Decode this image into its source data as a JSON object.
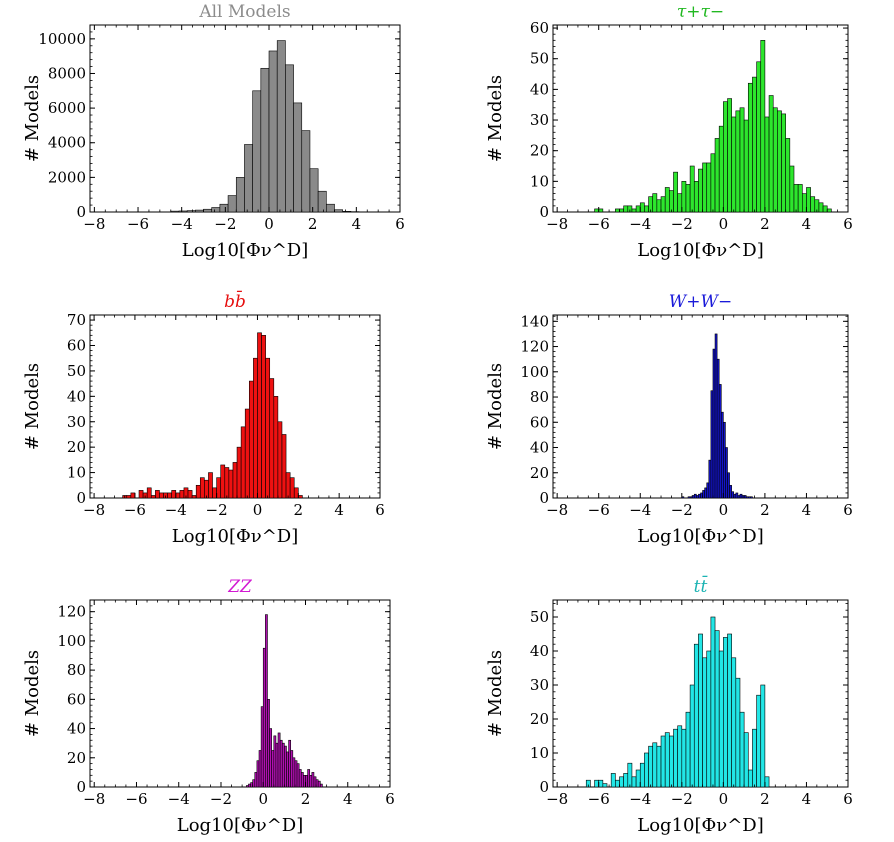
{
  "chart_data": [
    {
      "type": "bar",
      "title": "All Models",
      "title_color": "#8c8c8c",
      "bar_color": "#8a8a8a",
      "xlabel": "Log10[Φν^D]",
      "ylabel": "# Models",
      "xlim": [
        -8.2,
        6
      ],
      "ylim": [
        0,
        10800
      ],
      "xticks": [
        -8,
        -6,
        -4,
        -2,
        0,
        2,
        4,
        6
      ],
      "yticks": [
        0,
        2000,
        4000,
        6000,
        8000,
        10000
      ],
      "bin_width": 0.375,
      "bin_start": -4.5,
      "values": [
        50,
        60,
        80,
        110,
        160,
        260,
        450,
        950,
        2000,
        3900,
        7000,
        8300,
        9300,
        9900,
        8500,
        6300,
        4700,
        2500,
        1200,
        450,
        130,
        40,
        20,
        10
      ]
    },
    {
      "type": "bar",
      "title": "τ+τ−",
      "title_color": "#21b821",
      "bar_color": "#2de62d",
      "xlabel": "Log10[Φν^D]",
      "ylabel": "# Models",
      "xlim": [
        -8.2,
        6
      ],
      "ylim": [
        0,
        61
      ],
      "xticks": [
        -8,
        -6,
        -4,
        -2,
        0,
        2,
        4,
        6
      ],
      "yticks": [
        0,
        10,
        20,
        30,
        40,
        50,
        60
      ],
      "bin_width": 0.2,
      "bin_start": -6.2,
      "values": [
        1,
        1,
        0,
        0,
        0,
        1,
        1,
        2,
        2,
        1,
        2,
        3,
        2,
        5,
        6,
        4,
        5,
        8,
        7,
        13,
        6,
        10,
        9,
        15,
        10,
        14,
        16,
        16,
        19,
        24,
        28,
        36,
        37,
        31,
        33,
        34,
        30,
        42,
        44,
        49,
        56,
        31,
        38,
        34,
        33,
        32,
        24,
        15,
        9,
        9,
        6,
        8,
        5,
        4,
        3,
        2,
        1
      ]
    },
    {
      "type": "bar",
      "title": "bb̄",
      "title_color": "#e61010",
      "bar_color": "#ee1111",
      "xlabel": "Log10[Φν^D]",
      "ylabel": "# Models",
      "xlim": [
        -8.2,
        6
      ],
      "ylim": [
        0,
        72
      ],
      "xticks": [
        -8,
        -6,
        -4,
        -2,
        0,
        2,
        4,
        6
      ],
      "yticks": [
        0,
        10,
        20,
        30,
        40,
        50,
        60,
        70
      ],
      "bin_width": 0.2,
      "bin_start": -6.6,
      "values": [
        1,
        1,
        2,
        0,
        3,
        2,
        4,
        1,
        3,
        2,
        2,
        2,
        3,
        2,
        3,
        4,
        3,
        1,
        5,
        8,
        7,
        10,
        4,
        8,
        13,
        12,
        11,
        14,
        20,
        28,
        35,
        46,
        55,
        65,
        64,
        55,
        47,
        40,
        30,
        25,
        10,
        8,
        4,
        1
      ]
    },
    {
      "type": "bar",
      "title": "W+W−",
      "title_color": "#1a1ad9",
      "bar_color": "#1414c8",
      "xlabel": "Log10[Φν^D]",
      "ylabel": "# Models",
      "xlim": [
        -8.2,
        6
      ],
      "ylim": [
        0,
        145
      ],
      "xticks": [
        -8,
        -6,
        -4,
        -2,
        0,
        2,
        4,
        6
      ],
      "yticks": [
        0,
        20,
        40,
        60,
        80,
        100,
        120,
        140
      ],
      "bin_width": 0.1,
      "bin_start": -2,
      "values": [
        1,
        0,
        0,
        1,
        1,
        2,
        3,
        2,
        3,
        4,
        6,
        8,
        12,
        30,
        85,
        118,
        130,
        110,
        90,
        68,
        60,
        40,
        20,
        10,
        5,
        3,
        4,
        2,
        3,
        2,
        2,
        1,
        1,
        1
      ]
    },
    {
      "type": "bar",
      "title": "ZZ",
      "title_color": "#d21ad2",
      "bar_color": "#b010b0",
      "xlabel": "Log10[Φν^D]",
      "ylabel": "# Models",
      "xlim": [
        -8.2,
        6
      ],
      "ylim": [
        0,
        128
      ],
      "xticks": [
        -8,
        -6,
        -4,
        -2,
        0,
        2,
        4,
        6
      ],
      "yticks": [
        0,
        20,
        40,
        60,
        80,
        100,
        120
      ],
      "bin_width": 0.1,
      "bin_start": -0.8,
      "values": [
        1,
        2,
        3,
        5,
        10,
        18,
        25,
        55,
        95,
        118,
        60,
        40,
        25,
        35,
        30,
        37,
        32,
        30,
        28,
        24,
        32,
        25,
        20,
        18,
        16,
        12,
        10,
        8,
        8,
        12,
        8,
        10,
        7,
        5,
        4,
        2
      ]
    },
    {
      "type": "bar",
      "title": "tt̄",
      "title_color": "#1ab3b3",
      "bar_color": "#22e6e6",
      "xlabel": "Log10[Φν^D]",
      "ylabel": "# Models",
      "xlim": [
        -8.2,
        6
      ],
      "ylim": [
        0,
        55
      ],
      "xticks": [
        -8,
        -6,
        -4,
        -2,
        0,
        2,
        4,
        6
      ],
      "yticks": [
        0,
        10,
        20,
        30,
        40,
        50
      ],
      "bin_width": 0.2,
      "bin_start": -6.6,
      "values": [
        2,
        0,
        2,
        2,
        1,
        0,
        4,
        2,
        3,
        4,
        7,
        3,
        5,
        7,
        10,
        12,
        13,
        12,
        15,
        16,
        15,
        17,
        18,
        17,
        22,
        30,
        42,
        45,
        38,
        40,
        50,
        46,
        40,
        44,
        45,
        38,
        32,
        22,
        16,
        5,
        17,
        27,
        30,
        3
      ]
    }
  ]
}
